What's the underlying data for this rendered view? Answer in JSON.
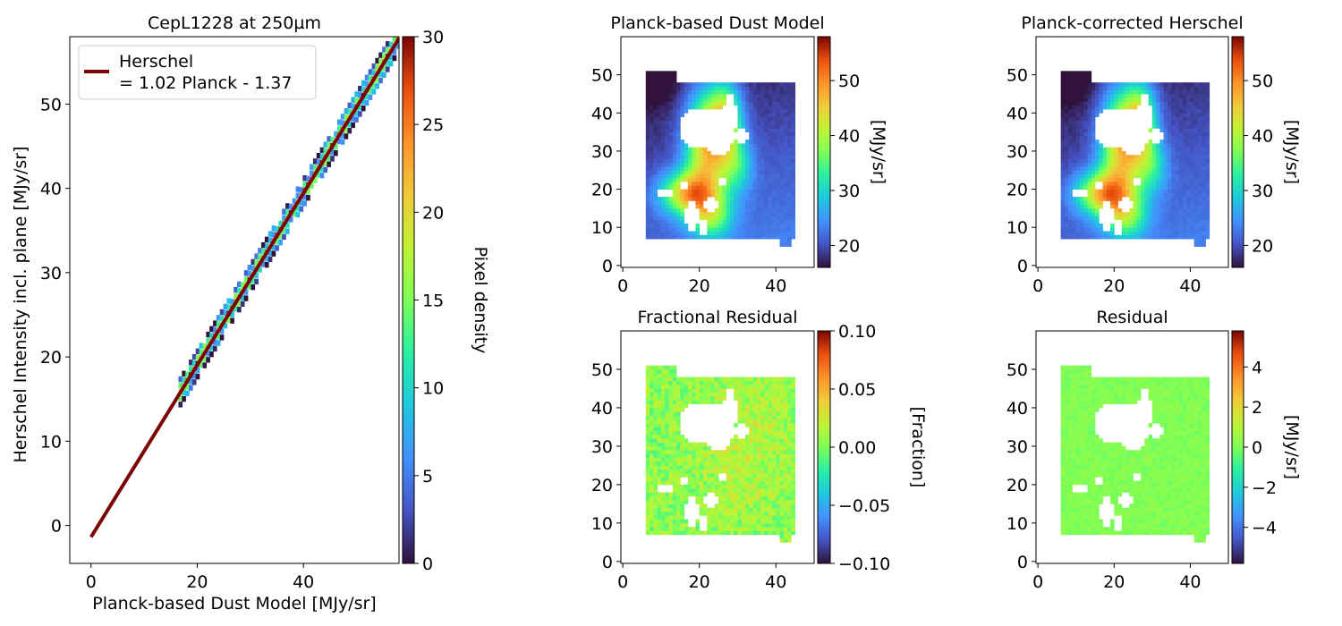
{
  "figure": {
    "colors": {
      "fit_line": "#7a0403",
      "frame": "#000000",
      "background": "#ffffff"
    },
    "colormap": "turbo"
  },
  "chart_data": [
    {
      "type": "heatmap",
      "kind": "density-scatter",
      "title": "CepL1228 at 250µm",
      "xlabel": "Planck-based Dust Model [MJy/sr]",
      "ylabel": "Herschel Intensity incl. plane [MJy/sr]",
      "xlim": [
        -4,
        58
      ],
      "ylim": [
        -4.5,
        58
      ],
      "xticks": [
        "0",
        "20",
        "40"
      ],
      "yticks": [
        "0",
        "10",
        "20",
        "30",
        "40",
        "50"
      ],
      "legend": {
        "position": "upper-left",
        "entries": [
          "Herschel\n= 1.02 Planck - 1.37"
        ]
      },
      "fit": {
        "slope": 1.02,
        "intercept": -1.37,
        "x_range": [
          0,
          58
        ]
      },
      "density_x_range": [
        16.8,
        58
      ],
      "colorbar": {
        "label": "Pixel density",
        "range": [
          0,
          30
        ],
        "ticks": [
          "0",
          "5",
          "10",
          "15",
          "20",
          "25",
          "30"
        ]
      }
    },
    {
      "type": "heatmap",
      "title": "Planck-based Dust Model",
      "xlim": [
        -0.5,
        50
      ],
      "ylim": [
        -0.5,
        60
      ],
      "xticks": [
        "0",
        "20",
        "40"
      ],
      "yticks": [
        "0",
        "10",
        "20",
        "30",
        "40",
        "50"
      ],
      "field": "model",
      "colorbar": {
        "label": "[MJy/sr]",
        "range": [
          16,
          58
        ],
        "ticks": [
          "20",
          "30",
          "40",
          "50"
        ]
      }
    },
    {
      "type": "heatmap",
      "title": "Planck-corrected Herschel",
      "xlim": [
        -0.5,
        50
      ],
      "ylim": [
        -0.5,
        60
      ],
      "xticks": [
        "0",
        "20",
        "40"
      ],
      "yticks": [
        "0",
        "10",
        "20",
        "30",
        "40",
        "50"
      ],
      "field": "model",
      "colorbar": {
        "label": "[MJy/sr]",
        "range": [
          16,
          58
        ],
        "ticks": [
          "20",
          "30",
          "40",
          "50"
        ]
      }
    },
    {
      "type": "heatmap",
      "title": "Fractional Residual",
      "xlim": [
        -0.5,
        50
      ],
      "ylim": [
        -0.5,
        60
      ],
      "xticks": [
        "0",
        "20",
        "40"
      ],
      "yticks": [
        "0",
        "10",
        "20",
        "30",
        "40",
        "50"
      ],
      "field": "fraction",
      "colorbar": {
        "label": "[Fraction]",
        "range": [
          -0.1,
          0.1
        ],
        "ticks": [
          "0.10",
          "0.05",
          "0.00",
          "−0.05",
          "−0.10"
        ]
      }
    },
    {
      "type": "heatmap",
      "title": "Residual",
      "xlim": [
        -0.5,
        50
      ],
      "ylim": [
        -0.5,
        60
      ],
      "xticks": [
        "0",
        "20",
        "40"
      ],
      "yticks": [
        "0",
        "10",
        "20",
        "30",
        "40",
        "50"
      ],
      "field": "residual",
      "colorbar": {
        "label": "[MJy/sr]",
        "range": [
          -5.8,
          5.8
        ],
        "ticks": [
          "4",
          "2",
          "0",
          "−2",
          "−4"
        ]
      }
    }
  ]
}
